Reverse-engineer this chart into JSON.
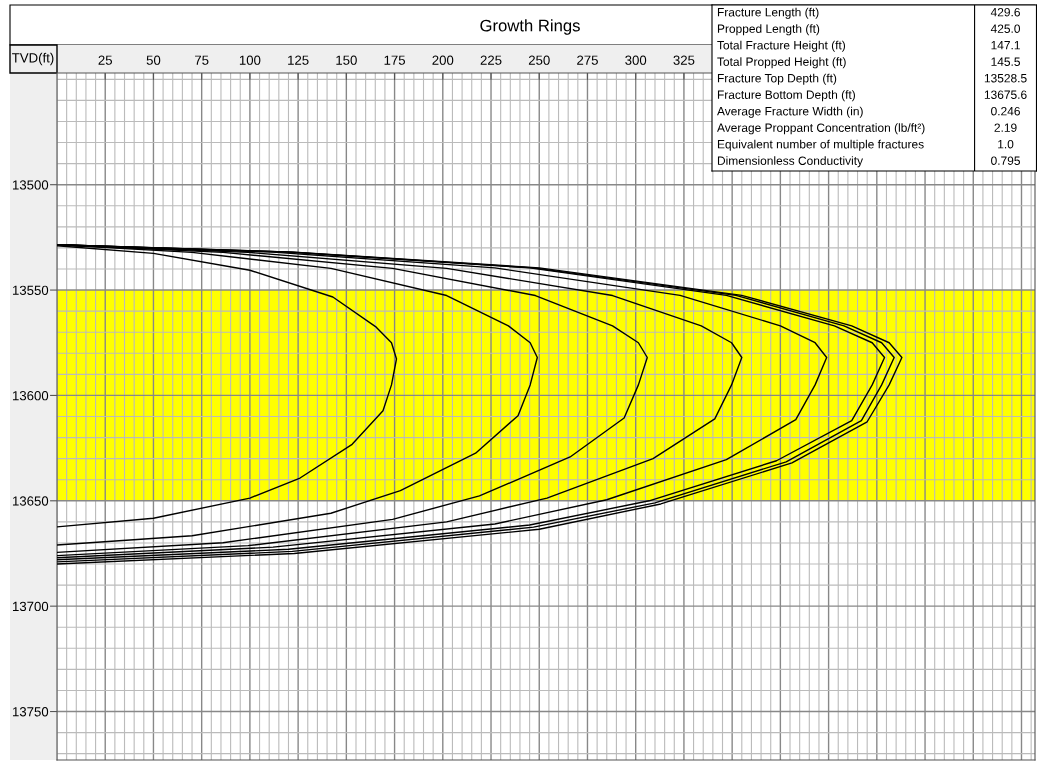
{
  "chart_data": [
    {
      "type": "line",
      "title": "Growth Rings",
      "ylabel": "TVD(ft)",
      "xlim": [
        0,
        507
      ],
      "ylim": [
        13773,
        13447
      ],
      "xticks": [
        25,
        50,
        75,
        100,
        125,
        150,
        175,
        200,
        225,
        250,
        275,
        300,
        325,
        {
          "value": 350,
          "label": null
        },
        {
          "value": 375,
          "label": null
        },
        {
          "value": 400,
          "label": null
        },
        {
          "value": 425,
          "label": null
        },
        {
          "value": 450,
          "label": null
        },
        {
          "value": 475,
          "label": null
        },
        {
          "value": 500,
          "label": null
        }
      ],
      "yticks": [
        13500,
        13550,
        13600,
        13650,
        13700,
        13750
      ],
      "grid": true,
      "marker": "none",
      "line_style": "solid",
      "bands": [
        {
          "axis": "y",
          "from": 13550,
          "to": 13650,
          "color": "#ffff00"
        }
      ],
      "series": [
        {
          "color": "#000000",
          "x": [
            0,
            50,
            100,
            143,
            165.5,
            173.4,
            176,
            173.4,
            169,
            153,
            126,
            100,
            50,
            0
          ],
          "values": [
            13529,
            13532.6,
            13540.6,
            13553.3,
            13567.6,
            13575,
            13582.7,
            13595,
            13607.3,
            13623.2,
            13639.2,
            13648.7,
            13658.3,
            13662.4
          ]
        },
        {
          "color": "#000000",
          "x": [
            0,
            70,
            142,
            202,
            234,
            245.3,
            249,
            245.3,
            239,
            217,
            178,
            142,
            70,
            0
          ],
          "values": [
            13528.5,
            13532.1,
            13539.7,
            13552.6,
            13567,
            13575,
            13582,
            13595,
            13609.6,
            13627.4,
            13645.2,
            13655.9,
            13666.6,
            13671
          ]
        },
        {
          "color": "#000000",
          "x": [
            0,
            86,
            174,
            248,
            288,
            301.4,
            306,
            301.4,
            294,
            266,
            219,
            174,
            86,
            0
          ],
          "values": [
            13528.5,
            13532.1,
            13539.7,
            13552.6,
            13567,
            13575,
            13582,
            13595,
            13610.7,
            13629.2,
            13647.7,
            13658.8,
            13669.9,
            13674.5
          ]
        },
        {
          "color": "#000000",
          "x": [
            0,
            99,
            202,
            288,
            334,
            349.7,
            355,
            349.7,
            341,
            309,
            254,
            202,
            99,
            0
          ],
          "values": [
            13528.5,
            13532.1,
            13539.7,
            13552.6,
            13567,
            13575,
            13582,
            13595,
            13611.1,
            13630,
            13648.7,
            13660,
            13671.3,
            13676
          ]
        },
        {
          "color": "#000000",
          "x": [
            0,
            112,
            227,
            323,
            375,
            393,
            399,
            393,
            383,
            347,
            285,
            227,
            112,
            0
          ],
          "values": [
            13528.5,
            13532,
            13539.5,
            13552.5,
            13567,
            13575,
            13582,
            13595,
            13611.5,
            13630.5,
            13649.5,
            13661,
            13672,
            13677
          ]
        },
        {
          "color": "#000000",
          "x": [
            0,
            120,
            245,
            347,
            403,
            422.6,
            429,
            422.6,
            412,
            373,
            307,
            245,
            120,
            0
          ],
          "values": [
            13528.5,
            13532,
            13539.5,
            13552.5,
            13567,
            13575,
            13582,
            13595,
            13612,
            13631,
            13650,
            13661.5,
            13673,
            13678
          ]
        },
        {
          "color": "#000000",
          "x": [
            0,
            122,
            247,
            352,
            408,
            427.5,
            434,
            427.5,
            417,
            378,
            310,
            247,
            122,
            0
          ],
          "values": [
            13528.5,
            13532,
            13539.5,
            13552.5,
            13567,
            13575,
            13582,
            13595,
            13612,
            13631.5,
            13651,
            13662.5,
            13674,
            13679
          ]
        },
        {
          "color": "#000000",
          "x": [
            0,
            123,
            250,
            355,
            412,
            431.4,
            438,
            431.4,
            420,
            381,
            313,
            250,
            123,
            0
          ],
          "values": [
            13528.5,
            13532,
            13539.5,
            13552.5,
            13567,
            13575,
            13582,
            13595,
            13612.5,
            13632,
            13651.5,
            13663.5,
            13675,
            13680
          ]
        }
      ]
    },
    {
      "type": "other",
      "annotations": [
        "Fracture Length (ft)",
        "429.6",
        "Propped Length (ft)",
        "425.0",
        "Total Fracture Height (ft)",
        "147.1",
        "Total Propped Height (ft)",
        "145.5",
        "Fracture Top Depth (ft)",
        "13528.5",
        "Fracture Bottom Depth (ft)",
        "13675.6",
        "Average Fracture Width (in)",
        "0.246",
        "Average Proppant Concentration (lb/ft²)",
        "2.19",
        "Equivalent number of multiple fractures",
        "1.0",
        "Dimensionless Conductivity",
        "0.795"
      ]
    }
  ]
}
